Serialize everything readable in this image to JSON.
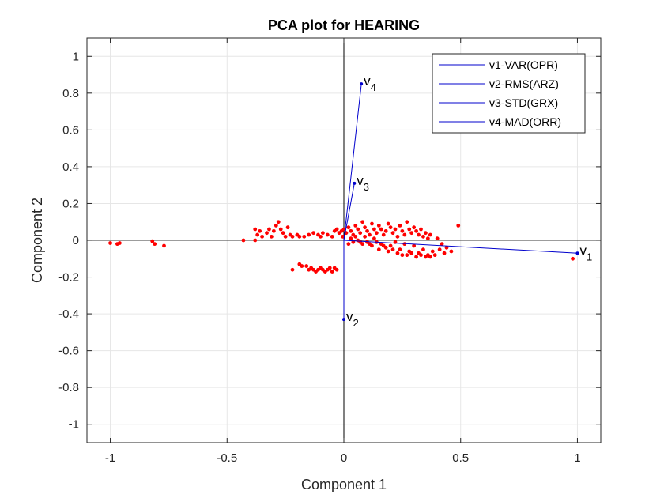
{
  "chart_data": {
    "type": "scatter",
    "title": "PCA plot for HEARING",
    "xlabel": "Component 1",
    "ylabel": "Component 2",
    "xlim": [
      -1.1,
      1.1
    ],
    "ylim": [
      -1.1,
      1.1
    ],
    "xticks": [
      -1,
      -0.5,
      0,
      0.5,
      1
    ],
    "xtick_labels": [
      "-1",
      "-0.5",
      "0",
      "0.5",
      "1"
    ],
    "yticks": [
      -1,
      -0.8,
      -0.6,
      -0.4,
      -0.2,
      0,
      0.2,
      0.4,
      0.6,
      0.8,
      1
    ],
    "ytick_labels": [
      "-1",
      "-0.8",
      "-0.6",
      "-0.4",
      "-0.2",
      "0",
      "0.2",
      "0.4",
      "0.6",
      "0.8",
      "1"
    ],
    "grid": true,
    "legend_position": "top-right",
    "colors": {
      "vectors": "#0000cc",
      "scores": "#ff0000",
      "axes": "#000000",
      "grid": "#e6e6e6"
    },
    "vectors": [
      {
        "name": "v1-VAR(OPR)",
        "label_main": "v",
        "label_sub": "1",
        "x": 1.0,
        "y": -0.07
      },
      {
        "name": "v2-RMS(ARZ)",
        "label_main": "v",
        "label_sub": "2",
        "x": 0.0,
        "y": -0.43
      },
      {
        "name": "v3-STD(GRX)",
        "label_main": "v",
        "label_sub": "3",
        "x": 0.045,
        "y": 0.31
      },
      {
        "name": "v4-MAD(ORR)",
        "label_main": "v",
        "label_sub": "4",
        "x": 0.075,
        "y": 0.85
      }
    ],
    "scores": [
      [
        -1.0,
        -0.015
      ],
      [
        -0.97,
        -0.02
      ],
      [
        -0.96,
        -0.015
      ],
      [
        -0.82,
        -0.005
      ],
      [
        -0.81,
        -0.02
      ],
      [
        -0.77,
        -0.03
      ],
      [
        -0.43,
        0.0
      ],
      [
        -0.38,
        0.0
      ],
      [
        -0.38,
        0.06
      ],
      [
        -0.37,
        0.03
      ],
      [
        -0.36,
        0.05
      ],
      [
        -0.35,
        0.02
      ],
      [
        -0.33,
        0.04
      ],
      [
        -0.32,
        0.06
      ],
      [
        -0.31,
        0.02
      ],
      [
        -0.3,
        0.05
      ],
      [
        -0.29,
        0.08
      ],
      [
        -0.28,
        0.1
      ],
      [
        -0.27,
        0.06
      ],
      [
        -0.26,
        0.04
      ],
      [
        -0.25,
        0.02
      ],
      [
        -0.24,
        0.07
      ],
      [
        -0.23,
        0.03
      ],
      [
        -0.22,
        0.02
      ],
      [
        -0.2,
        0.03
      ],
      [
        -0.19,
        0.02
      ],
      [
        -0.17,
        0.02
      ],
      [
        -0.15,
        0.03
      ],
      [
        -0.13,
        0.04
      ],
      [
        -0.11,
        0.03
      ],
      [
        -0.1,
        0.02
      ],
      [
        -0.09,
        0.04
      ],
      [
        -0.07,
        0.03
      ],
      [
        -0.05,
        0.02
      ],
      [
        -0.04,
        0.05
      ],
      [
        -0.03,
        0.06
      ],
      [
        -0.02,
        0.04
      ],
      [
        -0.01,
        0.05
      ],
      [
        -0.005,
        0.02
      ],
      [
        -0.22,
        -0.16
      ],
      [
        -0.19,
        -0.13
      ],
      [
        -0.18,
        -0.14
      ],
      [
        -0.16,
        -0.14
      ],
      [
        -0.15,
        -0.16
      ],
      [
        -0.14,
        -0.15
      ],
      [
        -0.13,
        -0.16
      ],
      [
        -0.12,
        -0.17
      ],
      [
        -0.11,
        -0.16
      ],
      [
        -0.1,
        -0.15
      ],
      [
        -0.09,
        -0.16
      ],
      [
        -0.08,
        -0.17
      ],
      [
        -0.07,
        -0.16
      ],
      [
        -0.06,
        -0.15
      ],
      [
        -0.05,
        -0.17
      ],
      [
        -0.04,
        -0.15
      ],
      [
        -0.03,
        -0.16
      ],
      [
        0.0,
        0.06
      ],
      [
        0.01,
        0.04
      ],
      [
        0.02,
        0.07
      ],
      [
        0.03,
        0.05
      ],
      [
        0.04,
        0.03
      ],
      [
        0.05,
        0.08
      ],
      [
        0.06,
        0.06
      ],
      [
        0.07,
        0.04
      ],
      [
        0.08,
        0.1
      ],
      [
        0.09,
        0.07
      ],
      [
        0.1,
        0.05
      ],
      [
        0.11,
        0.03
      ],
      [
        0.12,
        0.09
      ],
      [
        0.13,
        0.06
      ],
      [
        0.14,
        0.04
      ],
      [
        0.15,
        0.08
      ],
      [
        0.16,
        0.06
      ],
      [
        0.17,
        0.03
      ],
      [
        0.18,
        0.05
      ],
      [
        0.19,
        0.09
      ],
      [
        0.2,
        0.07
      ],
      [
        0.21,
        0.04
      ],
      [
        0.22,
        0.06
      ],
      [
        0.23,
        0.02
      ],
      [
        0.24,
        0.08
      ],
      [
        0.25,
        0.05
      ],
      [
        0.26,
        0.03
      ],
      [
        0.27,
        0.1
      ],
      [
        0.28,
        0.06
      ],
      [
        0.29,
        0.04
      ],
      [
        0.3,
        0.07
      ],
      [
        0.31,
        0.05
      ],
      [
        0.32,
        0.03
      ],
      [
        0.33,
        0.06
      ],
      [
        0.34,
        0.02
      ],
      [
        0.35,
        0.04
      ],
      [
        0.36,
        0.01
      ],
      [
        0.37,
        0.03
      ],
      [
        0.4,
        0.01
      ],
      [
        0.42,
        -0.02
      ],
      [
        0.44,
        -0.04
      ],
      [
        0.49,
        0.08
      ],
      [
        0.02,
        -0.02
      ],
      [
        0.04,
        -0.01
      ],
      [
        0.06,
        0.0
      ],
      [
        0.08,
        -0.02
      ],
      [
        0.1,
        -0.01
      ],
      [
        0.12,
        -0.03
      ],
      [
        0.14,
        -0.01
      ],
      [
        0.16,
        -0.02
      ],
      [
        0.18,
        -0.04
      ],
      [
        0.2,
        -0.03
      ],
      [
        0.22,
        -0.01
      ],
      [
        0.24,
        -0.05
      ],
      [
        0.26,
        -0.02
      ],
      [
        0.28,
        -0.06
      ],
      [
        0.3,
        -0.03
      ],
      [
        0.32,
        -0.07
      ],
      [
        0.34,
        -0.05
      ],
      [
        0.36,
        -0.08
      ],
      [
        0.38,
        -0.06
      ],
      [
        0.39,
        -0.08
      ],
      [
        0.41,
        -0.05
      ],
      [
        0.43,
        -0.07
      ],
      [
        0.46,
        -0.06
      ],
      [
        0.15,
        -0.05
      ],
      [
        0.19,
        -0.06
      ],
      [
        0.23,
        -0.07
      ],
      [
        0.27,
        -0.08
      ],
      [
        0.31,
        -0.09
      ],
      [
        0.33,
        -0.08
      ],
      [
        0.35,
        -0.09
      ],
      [
        0.37,
        -0.09
      ],
      [
        0.25,
        -0.08
      ],
      [
        0.29,
        -0.07
      ],
      [
        0.21,
        -0.05
      ],
      [
        0.17,
        -0.03
      ],
      [
        0.13,
        0.01
      ],
      [
        0.11,
        -0.02
      ],
      [
        0.09,
        0.02
      ],
      [
        0.07,
        -0.01
      ],
      [
        0.05,
        0.02
      ],
      [
        0.03,
        0.01
      ],
      [
        0.98,
        -0.1
      ]
    ]
  }
}
